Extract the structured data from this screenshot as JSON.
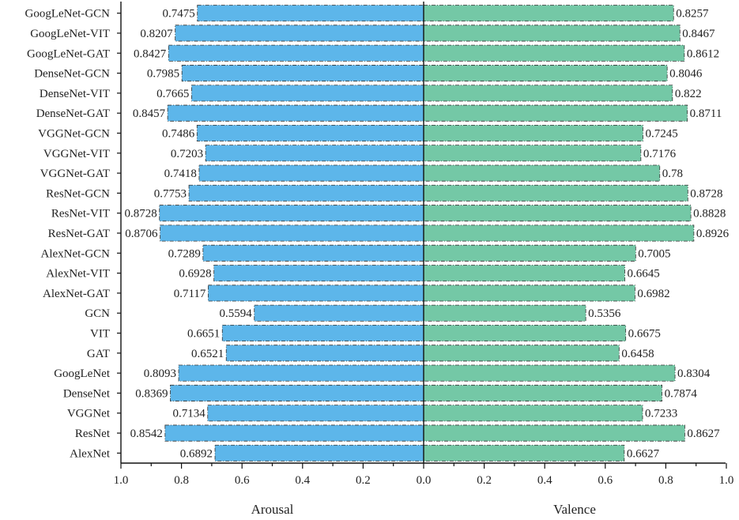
{
  "chart_data": {
    "type": "bar",
    "orientation": "horizontal-diverging",
    "categories": [
      "GoogLeNet-GCN",
      "GoogLeNet-VIT",
      "GoogLeNet-GAT",
      "DenseNet-GCN",
      "DenseNet-VIT",
      "DenseNet-GAT",
      "VGGNet-GCN",
      "VGGNet-VIT",
      "VGGNet-GAT",
      "ResNet-GCN",
      "ResNet-VIT",
      "ResNet-GAT",
      "AlexNet-GCN",
      "AlexNet-VIT",
      "AlexNet-GAT",
      "GCN",
      "VIT",
      "GAT",
      "GoogLeNet",
      "DenseNet",
      "VGGNet",
      "ResNet",
      "AlexNet"
    ],
    "series": [
      {
        "name": "Arousal",
        "color": "#5DB6EA",
        "side": "left",
        "values": [
          0.7475,
          0.8207,
          0.8427,
          0.7985,
          0.7665,
          0.8457,
          0.7486,
          0.7203,
          0.7418,
          0.7753,
          0.8728,
          0.8706,
          0.7289,
          0.6928,
          0.7117,
          0.5594,
          0.6651,
          0.6521,
          0.8093,
          0.8369,
          0.7134,
          0.8542,
          0.6892
        ],
        "labels": [
          "0.7475",
          "0.8207",
          "0.8427",
          "0.7985",
          "0.7665",
          "0.8457",
          "0.7486",
          "0.7203",
          "0.7418",
          "0.7753",
          "0.8728",
          "0.8706",
          "0.7289",
          "0.6928",
          "0.7117",
          "0.5594",
          "0.6651",
          "0.6521",
          "0.8093",
          "0.8369",
          "0.7134",
          "0.8542",
          "0.6892"
        ]
      },
      {
        "name": "Valence",
        "color": "#74C8A6",
        "side": "right",
        "values": [
          0.8257,
          0.8467,
          0.8612,
          0.8046,
          0.822,
          0.8711,
          0.7245,
          0.7176,
          0.78,
          0.8728,
          0.8828,
          0.8926,
          0.7005,
          0.6645,
          0.6982,
          0.5356,
          0.6675,
          0.6458,
          0.8304,
          0.7874,
          0.7233,
          0.8627,
          0.6627
        ],
        "labels": [
          "0.8257",
          "0.8467",
          "0.8612",
          "0.8046",
          "0.822",
          "0.8711",
          "0.7245",
          "0.7176",
          "0.78",
          "0.8728",
          "0.8828",
          "0.8926",
          "0.7005",
          "0.6645",
          "0.6982",
          "0.5356",
          "0.6675",
          "0.6458",
          "0.8304",
          "0.7874",
          "0.7233",
          "0.8627",
          "0.6627"
        ]
      }
    ],
    "xlim": [
      0,
      1.0
    ],
    "xticks": [
      1.0,
      0.8,
      0.6,
      0.4,
      0.2,
      0.0,
      0.2,
      0.4,
      0.6,
      0.8,
      1.0
    ],
    "xtick_labels": [
      "1.0",
      "0.8",
      "0.6",
      "0.4",
      "0.2",
      "0.0",
      "0.2",
      "0.4",
      "0.6",
      "0.8",
      "1.0"
    ],
    "xlabels": {
      "left": "Arousal",
      "right": "Valence"
    },
    "bar_style": "dash-dot outline",
    "grid": false,
    "legend": "none"
  }
}
